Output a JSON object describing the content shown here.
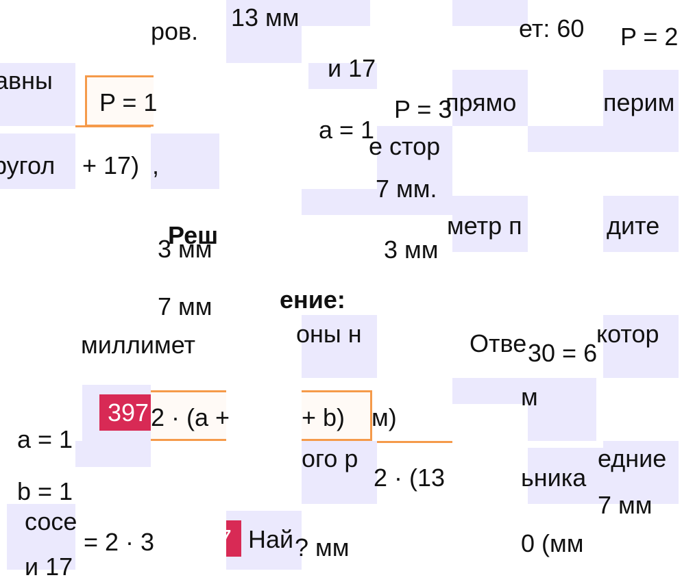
{
  "fragments": [
    "ров.",
    "13 мм",
    "ет: 60",
    "P = 2",
    "авны",
    "P = 1",
    "и 17",
    "а = 1",
    "P = 3",
    "прямо",
    "перим",
    "ругол",
    "+ 17)",
    ",",
    "е стор",
    "7 мм.",
    "метр п",
    "дите",
    "Реш",
    "3 мм",
    "3 мм",
    "7 мм",
    "ение:",
    "миллимет",
    "оны н",
    "Отве",
    "30 = 6",
    "котор",
    "м",
    "2 · (a +",
    "+ b)",
    "м)",
    "а = 1",
    "ого р",
    "2 · (13",
    "ьника",
    "едние",
    "7 мм",
    "b = 1",
    "сосе",
    "= 2 · 3",
    "Най",
    "? мм",
    "0 (мм",
    "и 17"
  ],
  "badges": [
    "397",
    "7"
  ],
  "colors": {
    "tile": "#ebe9fd",
    "accent_orange": "#f59a4a",
    "badge_red": "#d82a55"
  }
}
